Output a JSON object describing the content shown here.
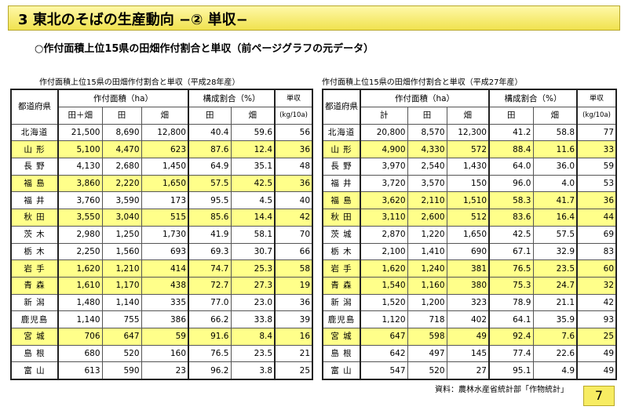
{
  "title": "3  東北のそばの生産動向  −②  単収−",
  "subtitle": "○作付面積上位15県の田畑作付割合と単収（前ページグラフの元データ）",
  "source": "資料：農林水産省統計部「作物統計」",
  "page_number": "7",
  "table_left": {
    "caption": "作付面積上位15県の田畑作付割合と単収（平成28年産）",
    "headers": {
      "prefecture": "都道府県",
      "area": "作付面積（ha）",
      "ratio": "構成割合（%）",
      "yield": "単収",
      "total": "田＋畑",
      "paddy": "田",
      "field": "畑",
      "ratio_paddy": "田",
      "ratio_field": "畑",
      "yield_unit": "(kg/10a)"
    },
    "rows": [
      {
        "pref": "北海道",
        "total": "21,500",
        "paddy": "8,690",
        "field": "12,800",
        "rp": "40.4",
        "rf": "59.6",
        "yield": "56",
        "hl": false
      },
      {
        "pref": "山 形",
        "total": "5,100",
        "paddy": "4,470",
        "field": "623",
        "rp": "87.6",
        "rf": "12.4",
        "yield": "36",
        "hl": true
      },
      {
        "pref": "長 野",
        "total": "4,130",
        "paddy": "2,680",
        "field": "1,450",
        "rp": "64.9",
        "rf": "35.1",
        "yield": "48",
        "hl": false
      },
      {
        "pref": "福 島",
        "total": "3,860",
        "paddy": "2,220",
        "field": "1,650",
        "rp": "57.5",
        "rf": "42.5",
        "yield": "36",
        "hl": true
      },
      {
        "pref": "福 井",
        "total": "3,760",
        "paddy": "3,590",
        "field": "173",
        "rp": "95.5",
        "rf": "4.5",
        "yield": "40",
        "hl": false
      },
      {
        "pref": "秋 田",
        "total": "3,550",
        "paddy": "3,040",
        "field": "515",
        "rp": "85.6",
        "rf": "14.4",
        "yield": "42",
        "hl": true
      },
      {
        "pref": "茨 木",
        "total": "2,980",
        "paddy": "1,250",
        "field": "1,730",
        "rp": "41.9",
        "rf": "58.1",
        "yield": "70",
        "hl": false
      },
      {
        "pref": "栃 木",
        "total": "2,250",
        "paddy": "1,560",
        "field": "693",
        "rp": "69.3",
        "rf": "30.7",
        "yield": "66",
        "hl": false
      },
      {
        "pref": "岩 手",
        "total": "1,620",
        "paddy": "1,210",
        "field": "414",
        "rp": "74.7",
        "rf": "25.3",
        "yield": "58",
        "hl": true
      },
      {
        "pref": "青 森",
        "total": "1,610",
        "paddy": "1,170",
        "field": "438",
        "rp": "72.7",
        "rf": "27.3",
        "yield": "19",
        "hl": true
      },
      {
        "pref": "新 潟",
        "total": "1,480",
        "paddy": "1,140",
        "field": "335",
        "rp": "77.0",
        "rf": "23.0",
        "yield": "36",
        "hl": false
      },
      {
        "pref": "鹿児島",
        "total": "1,140",
        "paddy": "755",
        "field": "386",
        "rp": "66.2",
        "rf": "33.8",
        "yield": "39",
        "hl": false
      },
      {
        "pref": "宮 城",
        "total": "706",
        "paddy": "647",
        "field": "59",
        "rp": "91.6",
        "rf": "8.4",
        "yield": "16",
        "hl": true
      },
      {
        "pref": "島 根",
        "total": "680",
        "paddy": "520",
        "field": "160",
        "rp": "76.5",
        "rf": "23.5",
        "yield": "21",
        "hl": false
      },
      {
        "pref": "富 山",
        "total": "613",
        "paddy": "590",
        "field": "23",
        "rp": "96.2",
        "rf": "3.8",
        "yield": "25",
        "hl": false
      }
    ]
  },
  "table_right": {
    "caption": "作付面積上位15県の田畑作付割合と単収（平成27年産）",
    "headers": {
      "prefecture": "都道府県",
      "area": "作付面積（ha）",
      "ratio": "構成割合（%）",
      "yield": "単収",
      "total": "計",
      "paddy": "田",
      "field": "畑",
      "ratio_paddy": "田",
      "ratio_field": "畑",
      "yield_unit": "(kg/10a)"
    },
    "rows": [
      {
        "pref": "北海道",
        "total": "20,800",
        "paddy": "8,570",
        "field": "12,300",
        "rp": "41.2",
        "rf": "58.8",
        "yield": "77",
        "hl": false
      },
      {
        "pref": "山 形",
        "total": "4,900",
        "paddy": "4,330",
        "field": "572",
        "rp": "88.4",
        "rf": "11.6",
        "yield": "33",
        "hl": true
      },
      {
        "pref": "長 野",
        "total": "3,970",
        "paddy": "2,540",
        "field": "1,430",
        "rp": "64.0",
        "rf": "36.0",
        "yield": "59",
        "hl": false
      },
      {
        "pref": "福 井",
        "total": "3,720",
        "paddy": "3,570",
        "field": "150",
        "rp": "96.0",
        "rf": "4.0",
        "yield": "53",
        "hl": false
      },
      {
        "pref": "福 島",
        "total": "3,620",
        "paddy": "2,110",
        "field": "1,510",
        "rp": "58.3",
        "rf": "41.7",
        "yield": "36",
        "hl": true
      },
      {
        "pref": "秋 田",
        "total": "3,110",
        "paddy": "2,600",
        "field": "512",
        "rp": "83.6",
        "rf": "16.4",
        "yield": "44",
        "hl": true
      },
      {
        "pref": "茨 城",
        "total": "2,870",
        "paddy": "1,220",
        "field": "1,650",
        "rp": "42.5",
        "rf": "57.5",
        "yield": "69",
        "hl": false
      },
      {
        "pref": "栃 木",
        "total": "2,100",
        "paddy": "1,410",
        "field": "690",
        "rp": "67.1",
        "rf": "32.9",
        "yield": "83",
        "hl": false
      },
      {
        "pref": "岩 手",
        "total": "1,620",
        "paddy": "1,240",
        "field": "381",
        "rp": "76.5",
        "rf": "23.5",
        "yield": "60",
        "hl": true
      },
      {
        "pref": "青 森",
        "total": "1,540",
        "paddy": "1,160",
        "field": "380",
        "rp": "75.3",
        "rf": "24.7",
        "yield": "32",
        "hl": true
      },
      {
        "pref": "新 潟",
        "total": "1,520",
        "paddy": "1,200",
        "field": "323",
        "rp": "78.9",
        "rf": "21.1",
        "yield": "42",
        "hl": false
      },
      {
        "pref": "鹿児島",
        "total": "1,120",
        "paddy": "718",
        "field": "402",
        "rp": "64.1",
        "rf": "35.9",
        "yield": "93",
        "hl": false
      },
      {
        "pref": "宮 城",
        "total": "647",
        "paddy": "598",
        "field": "49",
        "rp": "92.4",
        "rf": "7.6",
        "yield": "25",
        "hl": true
      },
      {
        "pref": "島 根",
        "total": "642",
        "paddy": "497",
        "field": "145",
        "rp": "77.4",
        "rf": "22.6",
        "yield": "49",
        "hl": false
      },
      {
        "pref": "富 山",
        "total": "547",
        "paddy": "520",
        "field": "27",
        "rp": "95.1",
        "rf": "4.9",
        "yield": "49",
        "hl": false
      }
    ]
  }
}
